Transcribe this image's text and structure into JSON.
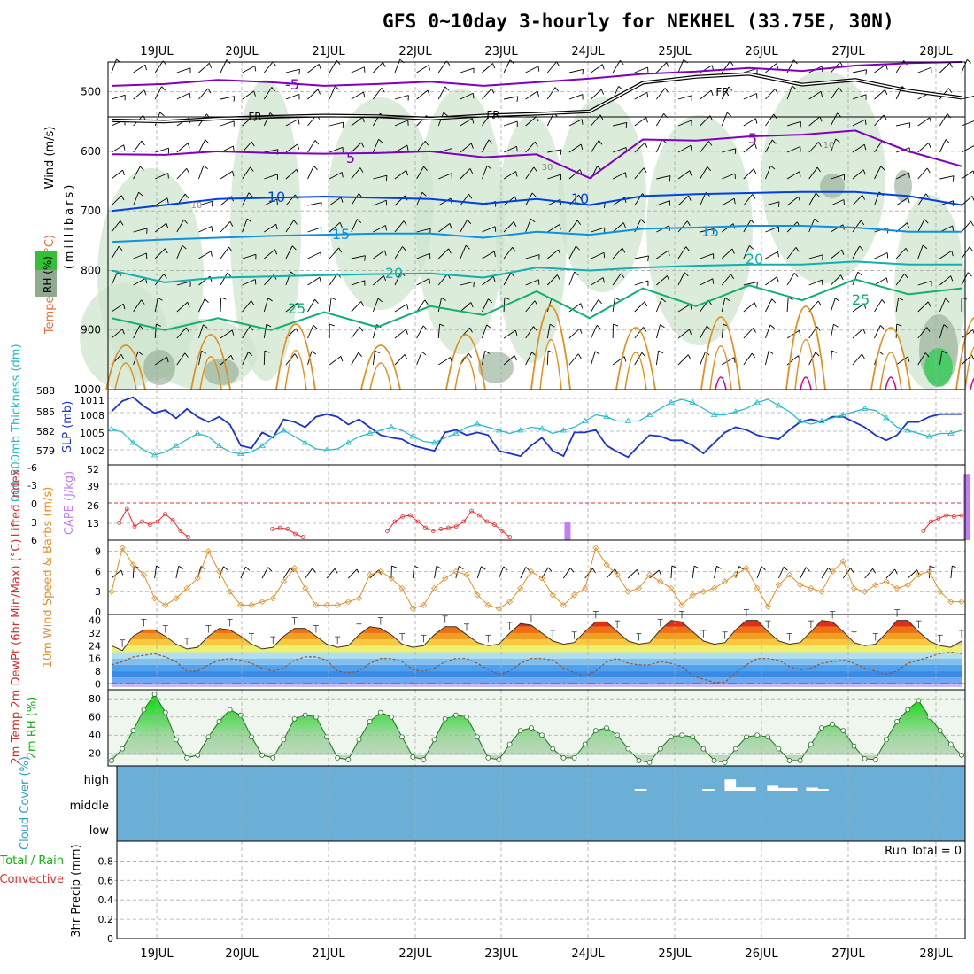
{
  "page": {
    "title": "GFS 0~10day 3-hourly for NEKHEL (33.75E, 30N)"
  },
  "colors": {
    "purple": "#8000c0",
    "black": "#000000",
    "blue": "#0040e0",
    "lightblue": "#1090e0",
    "teal": "#10b0b0",
    "green": "#10b070",
    "orange": "#e09020",
    "magenta": "#e00090",
    "rh_fill": "#cfe6cf",
    "rh_dark": "#90aa90",
    "slp_line": "#1a33cc",
    "thickness_line": "#22b8c8",
    "li_line": "#e03030",
    "cape_bar": "#c080f0",
    "wind_line": "#e0902a",
    "cloud_bg": "#6baed6",
    "rh2m_fill": "#a8d8a8"
  },
  "chart_data": [
    {
      "panel": "upper_air",
      "type": "contour",
      "ylabel_parts": [
        "Wind (m/s)",
        "Temperature (°C)",
        "RH (%)",
        "(millibars)"
      ],
      "yticks": [
        "500",
        "600",
        "700",
        "800",
        "900",
        "1000"
      ],
      "ylim": [
        450,
        1000
      ],
      "x_dates": [
        "19JUL",
        "20JUL",
        "21JUL",
        "22JUL",
        "23JUL",
        "24JUL",
        "25JUL",
        "26JUL",
        "27JUL",
        "28JUL"
      ],
      "temperature_contour_labels": [
        "-5",
        "5",
        "10",
        "15",
        "20",
        "25"
      ],
      "freezing_label": "FR",
      "rh_contour_labels": [
        "10",
        "30"
      ],
      "temperature_levels": [
        {
          "label": "-5",
          "color": "purple",
          "p": [
            490,
            487,
            480,
            484,
            490,
            487,
            483,
            490,
            484,
            478,
            470,
            466,
            460,
            465,
            456,
            452,
            450
          ]
        },
        {
          "label": "5",
          "color": "purple",
          "p": [
            605,
            606,
            600,
            603,
            604,
            603,
            600,
            610,
            605,
            645,
            580,
            582,
            575,
            572,
            565,
            600,
            625
          ]
        },
        {
          "label": "10",
          "color": "blue",
          "p": [
            700,
            690,
            680,
            678,
            676,
            678,
            680,
            688,
            680,
            690,
            675,
            672,
            670,
            668,
            668,
            675,
            690
          ]
        },
        {
          "label": "15",
          "color": "lightblue",
          "p": [
            752,
            748,
            745,
            742,
            740,
            738,
            738,
            745,
            735,
            740,
            730,
            728,
            725,
            725,
            728,
            735,
            735
          ]
        },
        {
          "label": "20",
          "color": "teal",
          "p": [
            800,
            820,
            812,
            810,
            808,
            806,
            805,
            812,
            795,
            800,
            795,
            792,
            790,
            790,
            785,
            790,
            790
          ]
        },
        {
          "label": "25",
          "color": "green",
          "p": [
            880,
            900,
            880,
            900,
            870,
            895,
            860,
            875,
            835,
            880,
            830,
            860,
            825,
            850,
            815,
            840,
            830
          ]
        }
      ],
      "freezing_level": [
        548,
        550,
        545,
        542,
        540,
        541,
        545,
        540,
        537,
        533,
        485,
        475,
        470,
        488,
        480,
        498,
        510
      ]
    },
    {
      "panel": "slp_thickness",
      "type": "line",
      "ylabel_left": "1000-500mb Thickness (dm)",
      "ylabel_right": "SLP (mb)",
      "left_ticks": [
        "588",
        "585",
        "582",
        "579"
      ],
      "right_ticks": [
        "1011",
        "1008",
        "1005",
        "1002"
      ],
      "ylim_left": [
        577,
        588
      ],
      "ylim_right": [
        999,
        1012
      ],
      "series": [
        {
          "axis": "right",
          "color": "slp_line",
          "values": [
            1008.5,
            1010.5,
            1011.2,
            1009.5,
            1008.2,
            1008.8,
            1007.2,
            1009.0,
            1007.5,
            1006.5,
            1007.5,
            1006.0,
            1002.0,
            1001.5,
            1004.5,
            1003.5,
            1007.0,
            1006.5,
            1005.5,
            1007.5,
            1008.0,
            1007.5,
            1006.0,
            1007.0,
            1005.5,
            1004.0,
            1003.5,
            1003.2,
            1002.0,
            1001.5,
            1001.0,
            1004.5,
            1005.0,
            1004.0,
            1004.5,
            1004.0,
            1001.0,
            1000.5,
            1000.0,
            1002.0,
            1003.5,
            1001.0,
            1000.0,
            1004.5,
            1004.5,
            1005.0,
            1002.0,
            1000.8,
            999.8,
            1002.0,
            1004.0,
            1003.8,
            1003.0,
            1003.0,
            1002.0,
            1000.5,
            1002.5,
            1004.5,
            1005.5,
            1005.0,
            1004.0,
            1003.5,
            1003.2,
            1005.0,
            1006.5,
            1007.0,
            1006.5,
            1007.5,
            1007.5,
            1006.5,
            1005.5,
            1004.0,
            1003.0,
            1004.0,
            1006.5,
            1006.5,
            1007.5,
            1008.0,
            1008.0,
            1008.0
          ]
        },
        {
          "axis": "left",
          "color": "thickness_line",
          "values": [
            582.2,
            581.7,
            580.0,
            578.8,
            578.0,
            578.5,
            579.5,
            580.5,
            581.5,
            581.0,
            579.5,
            578.5,
            578.2,
            578.5,
            579.5,
            581.0,
            582.0,
            581.0,
            580.0,
            579.0,
            578.8,
            579.0,
            580.0,
            581.0,
            581.5,
            582.0,
            582.5,
            582.0,
            581.0,
            580.2,
            580.0,
            580.8,
            581.5,
            582.5,
            583.0,
            582.5,
            582.0,
            581.5,
            582.0,
            582.5,
            582.3,
            581.5,
            582.0,
            582.5,
            583.5,
            584.5,
            584.2,
            583.5,
            583.5,
            583.5,
            584.5,
            585.5,
            586.5,
            587.0,
            586.5,
            585.5,
            584.5,
            584.5,
            585.0,
            585.5,
            586.5,
            587.0,
            586.0,
            585.0,
            583.5,
            583.0,
            583.5,
            584.0,
            584.5,
            585.0,
            585.5,
            585.2,
            584.0,
            582.5,
            582.0,
            581.5,
            581.0,
            581.5,
            581.5,
            582.0
          ]
        }
      ]
    },
    {
      "panel": "instability",
      "type": "bar",
      "ylabel_left": "Lifted Index",
      "ylabel_right": "CAPE (J/kg)",
      "left_ticks": [
        "-6",
        "-3",
        "0",
        "3",
        "6"
      ],
      "right_ticks": [
        "52",
        "39",
        "26",
        "13"
      ],
      "li_zero_line": true,
      "lifted_index": [
        null,
        3.2,
        1.0,
        3.8,
        3.0,
        3.5,
        3.0,
        1.8,
        2.8,
        4.5,
        5.5,
        null,
        null,
        null,
        null,
        null,
        null,
        null,
        null,
        null,
        null,
        4.2,
        4.0,
        4.2,
        5.0,
        5.5,
        null,
        null,
        null,
        null,
        null,
        null,
        null,
        null,
        null,
        null,
        4.5,
        3.0,
        2.2,
        2.0,
        3.0,
        4.0,
        4.5,
        4.2,
        4.0,
        3.8,
        3.0,
        1.3,
        2.0,
        3.0,
        3.5,
        4.5,
        5.5,
        null,
        null,
        null,
        null,
        null,
        null,
        null,
        null,
        null,
        null,
        null,
        null,
        null,
        null,
        null,
        null,
        null,
        null,
        null,
        null,
        null,
        null,
        null,
        null,
        null,
        null,
        null,
        null,
        null,
        null,
        null,
        null,
        null,
        null,
        null,
        null,
        null,
        null,
        null,
        null,
        null,
        null,
        null,
        null,
        null,
        null,
        null,
        null,
        null,
        null,
        null,
        null,
        null,
        4.5,
        3.0,
        2.5,
        2.0,
        2.2,
        2.0
      ],
      "cape_bars": [
        {
          "date_index": 4.74,
          "value": 13
        },
        {
          "date_index": 9.35,
          "value": 48
        },
        {
          "date_index": 9.48,
          "value": 11
        }
      ]
    },
    {
      "panel": "wind_10m",
      "type": "line",
      "ylabel": "10m Wind Speed & Barbs (m/s)",
      "yticks": [
        "9",
        "6",
        "3",
        "0"
      ],
      "ylim": [
        0,
        10
      ],
      "values": [
        3.0,
        9.5,
        7.0,
        5.5,
        2.0,
        1.0,
        2.0,
        3.5,
        5.0,
        9.0,
        6.0,
        3.0,
        1.0,
        1.0,
        1.5,
        2.0,
        4.5,
        6.5,
        3.5,
        1.0,
        1.0,
        1.0,
        1.5,
        2.0,
        5.5,
        6.0,
        5.0,
        3.5,
        0.5,
        1.0,
        3.5,
        5.0,
        6.0,
        5.5,
        2.5,
        1.0,
        0.5,
        1.5,
        3.5,
        6.0,
        5.0,
        2.5,
        1.0,
        2.5,
        3.5,
        9.5,
        7.0,
        5.5,
        3.0,
        3.5,
        5.5,
        4.5,
        3.5,
        1.0,
        2.5,
        3.0,
        3.5,
        4.5,
        5.5,
        6.5,
        3.5,
        0.8,
        4.0,
        5.5,
        4.0,
        3.5,
        3.0,
        6.0,
        7.5,
        3.5,
        3.0,
        4.0,
        4.5,
        3.5,
        4.0,
        5.5,
        6.0,
        3.0,
        1.5,
        1.5
      ]
    },
    {
      "panel": "temp_2m",
      "type": "line",
      "ylabel": "2m Temp 2m DewPt (6hr Min/Max) (°C)",
      "yticks": [
        "40",
        "32",
        "24",
        "16",
        "8",
        "0"
      ],
      "ylim": [
        -2,
        42
      ],
      "temp_min": [
        24,
        21,
        30,
        34,
        34,
        30,
        25,
        22,
        23,
        30,
        35,
        34,
        30,
        25,
        22,
        23,
        30,
        35,
        35,
        30,
        25,
        23,
        24,
        31,
        36,
        35,
        31,
        25,
        23,
        24,
        31,
        36,
        36,
        31,
        26,
        24,
        25,
        32,
        38,
        37,
        32,
        27,
        25,
        26,
        33,
        39,
        39,
        33,
        27,
        25,
        26,
        34,
        40,
        39,
        33,
        27,
        25,
        26,
        34,
        40,
        40,
        33,
        27,
        25,
        26,
        33,
        40,
        39,
        33,
        26,
        24,
        25,
        32,
        40,
        40,
        33,
        27,
        24,
        23,
        27
      ],
      "dew_min": [
        12,
        14,
        17,
        18,
        19,
        17,
        14,
        8,
        8,
        12,
        15,
        16,
        15,
        13,
        10,
        8,
        10,
        15,
        17,
        17,
        15,
        8,
        7,
        8,
        13,
        16,
        16,
        14,
        9,
        8,
        10,
        14,
        16,
        16,
        13,
        9,
        6,
        8,
        13,
        16,
        16,
        15,
        10,
        7,
        5,
        8,
        14,
        16,
        13,
        12,
        12,
        14,
        13,
        11,
        5,
        3,
        1,
        1,
        7,
        12,
        16,
        16,
        15,
        11,
        9,
        10,
        13,
        14,
        15,
        13,
        10,
        8,
        6,
        8,
        13,
        15,
        17,
        19,
        20,
        19
      ],
      "dashed_zero_line": true
    },
    {
      "panel": "rh_2m",
      "type": "area",
      "ylabel": "2m RH (%)",
      "yticks": [
        "80",
        "60",
        "40",
        "20"
      ],
      "ylim": [
        10,
        88
      ],
      "values": [
        12,
        25,
        45,
        68,
        85,
        65,
        35,
        15,
        18,
        38,
        55,
        68,
        62,
        38,
        18,
        15,
        35,
        58,
        62,
        60,
        38,
        15,
        13,
        35,
        55,
        65,
        60,
        38,
        16,
        13,
        35,
        58,
        62,
        60,
        38,
        15,
        13,
        30,
        45,
        48,
        40,
        25,
        15,
        15,
        30,
        45,
        48,
        40,
        25,
        12,
        10,
        25,
        38,
        40,
        38,
        25,
        12,
        10,
        25,
        38,
        40,
        38,
        25,
        12,
        12,
        30,
        48,
        52,
        45,
        28,
        14,
        13,
        35,
        55,
        68,
        78,
        60,
        45,
        30,
        18
      ]
    },
    {
      "panel": "cloud_cover",
      "type": "heatmap",
      "ylabel": "Cloud Cover (%)",
      "labels": [
        "high",
        "middle",
        "low"
      ],
      "high_cloud_patches": [
        {
          "x": 5.52,
          "w": 0.14,
          "h": 0.12
        },
        {
          "x": 6.3,
          "w": 0.14,
          "h": 0.12
        },
        {
          "x": 6.56,
          "w": 0.13,
          "h": 0.8
        },
        {
          "x": 6.69,
          "w": 0.23,
          "h": 0.24
        },
        {
          "x": 7.05,
          "w": 0.13,
          "h": 0.35
        },
        {
          "x": 7.18,
          "w": 0.22,
          "h": 0.2
        },
        {
          "x": 7.5,
          "w": 0.14,
          "h": 0.22
        },
        {
          "x": 7.64,
          "w": 0.12,
          "h": 0.12
        }
      ]
    },
    {
      "panel": "precip",
      "type": "bar",
      "ylabel_parts": [
        "Total / Rain",
        "Convective",
        "3hr Precip (mm)"
      ],
      "yticks": [
        "0.8",
        "0.6",
        "0.4",
        "0.2",
        "0"
      ],
      "ylim": [
        0,
        0.95
      ],
      "run_total_label": "Run Total = 0",
      "x_dates": [
        "19JUL",
        "20JUL",
        "21JUL",
        "22JUL",
        "23JUL",
        "24JUL",
        "25JUL",
        "26JUL",
        "27JUL",
        "28JUL"
      ],
      "values": []
    }
  ]
}
